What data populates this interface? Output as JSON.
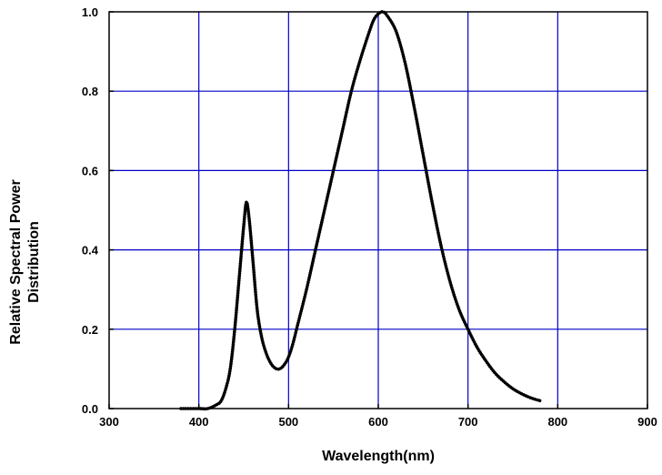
{
  "chart_data": {
    "type": "line",
    "title": "",
    "xlabel": "Wavelength(nm)",
    "ylabel_lines": [
      "Relative Spectral Power",
      "Distribution"
    ],
    "xlim": [
      300,
      900
    ],
    "ylim": [
      0.0,
      1.0
    ],
    "xticks": [
      300,
      400,
      500,
      600,
      700,
      800,
      900
    ],
    "yticks": [
      0.0,
      0.2,
      0.4,
      0.6,
      0.8,
      1.0
    ],
    "xtick_labels": [
      "300",
      "400",
      "500",
      "600",
      "700",
      "800",
      "900"
    ],
    "ytick_labels": [
      "0.0",
      "0.2",
      "0.4",
      "0.6",
      "0.8",
      "1.0"
    ],
    "grid": true,
    "grid_color": "#0000c8",
    "line_color": "#000000",
    "series": [
      {
        "x": [
          380,
          400,
          410,
          420,
          425,
          430,
          435,
          440,
          445,
          450,
          453,
          456,
          460,
          465,
          470,
          475,
          480,
          485,
          490,
          495,
          500,
          505,
          510,
          520,
          530,
          540,
          550,
          560,
          570,
          580,
          590,
          595,
          600,
          605,
          610,
          620,
          630,
          640,
          650,
          660,
          670,
          680,
          690,
          700,
          710,
          720,
          730,
          740,
          750,
          760,
          770,
          780
        ],
        "y": [
          0.0,
          0.0,
          0.0,
          0.01,
          0.02,
          0.05,
          0.1,
          0.2,
          0.33,
          0.46,
          0.52,
          0.48,
          0.38,
          0.25,
          0.18,
          0.14,
          0.115,
          0.102,
          0.1,
          0.11,
          0.13,
          0.165,
          0.21,
          0.3,
          0.4,
          0.5,
          0.6,
          0.7,
          0.8,
          0.88,
          0.95,
          0.98,
          0.995,
          1.0,
          0.99,
          0.95,
          0.87,
          0.76,
          0.64,
          0.52,
          0.41,
          0.32,
          0.25,
          0.2,
          0.155,
          0.12,
          0.09,
          0.068,
          0.05,
          0.037,
          0.027,
          0.02
        ]
      }
    ]
  }
}
